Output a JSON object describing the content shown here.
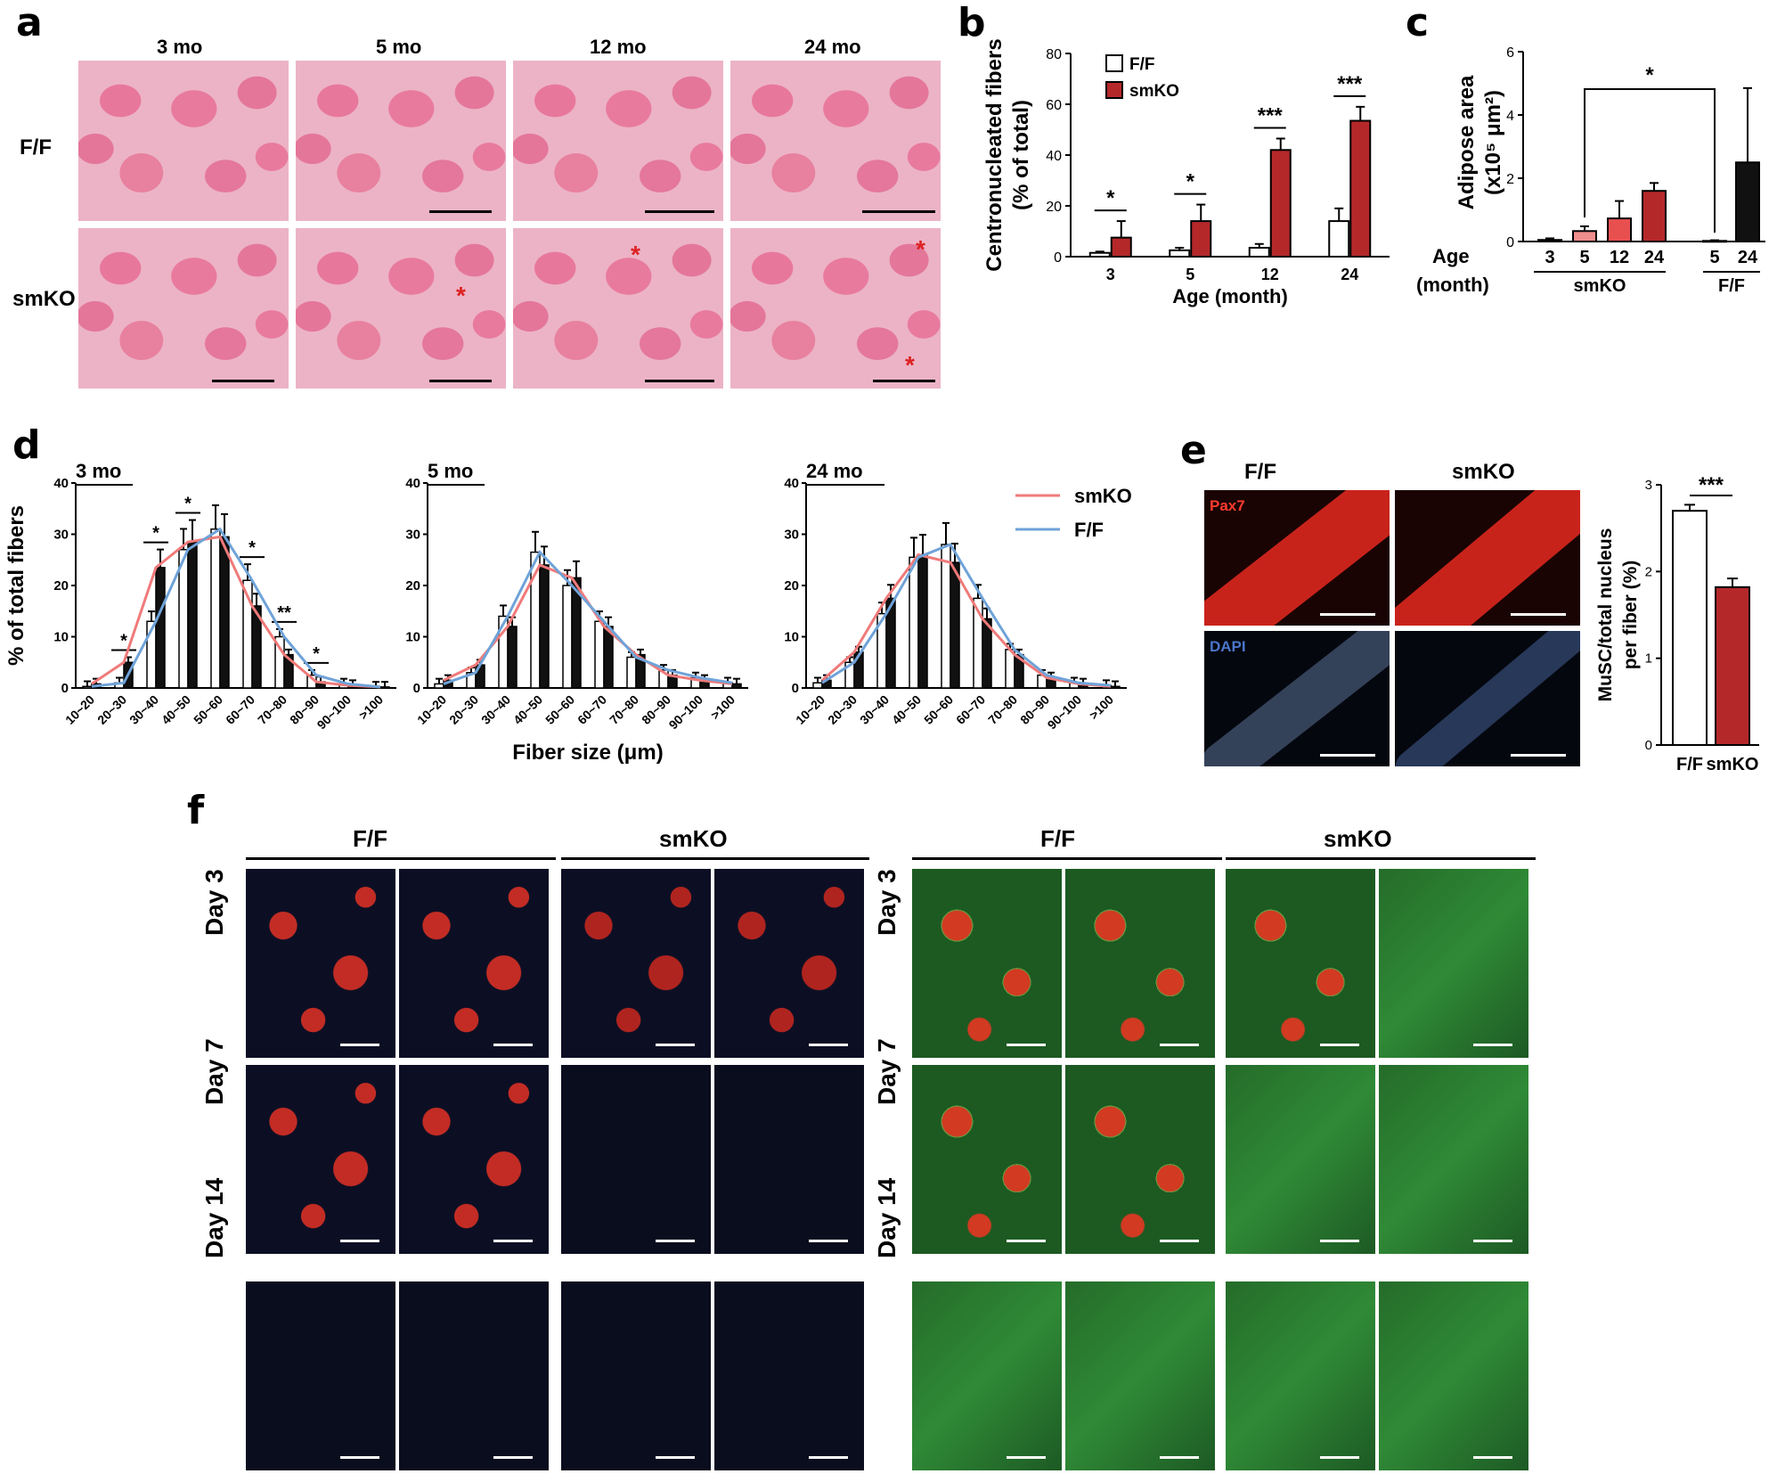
{
  "panels": {
    "a": "a",
    "b": "b",
    "c": "c",
    "d": "d",
    "e": "e",
    "f": "f"
  },
  "panel_a": {
    "ages": [
      "3 mo",
      "5 mo",
      "12 mo",
      "24 mo"
    ],
    "rows": [
      "F/F",
      "smKO"
    ],
    "asterisk": "*"
  },
  "panel_e": {
    "cols": [
      "F/F",
      "smKO"
    ],
    "stains": [
      "Pax7",
      "DAPI"
    ]
  },
  "panel_f": {
    "groups": [
      "F/F",
      "smKO",
      "F/F",
      "smKO"
    ],
    "days": [
      "Day 3",
      "Day 7",
      "Day 14"
    ]
  },
  "chart_data": [
    {
      "id": "b",
      "type": "bar",
      "ylabel": "Centronucleated fibers\n(% of total)",
      "xlabel": "Age (month)",
      "categories": [
        "3",
        "5",
        "12",
        "24"
      ],
      "ylim": [
        0,
        80
      ],
      "yticks": [
        "0",
        "20",
        "40",
        "60",
        "80"
      ],
      "series": [
        {
          "name": "F/F",
          "values": [
            1.5,
            2.5,
            3.5,
            14
          ],
          "errors": [
            0.5,
            1.0,
            1.5,
            5
          ],
          "color": "#ffffff"
        },
        {
          "name": "smKO",
          "values": [
            7.5,
            14,
            42,
            53.5
          ],
          "errors": [
            6.5,
            6.5,
            4.5,
            5.5
          ],
          "color": "#b5282a"
        }
      ],
      "significance": [
        "*",
        "*",
        "***",
        "***"
      ],
      "legend": "top-left"
    },
    {
      "id": "c",
      "type": "bar",
      "ylabel": "Adipose area\n(x10⁵ μm²)",
      "xaxis_title": "Age",
      "xaxis_title2": "(month)",
      "categories": [
        "3",
        "5",
        "12",
        "24",
        "5",
        "24"
      ],
      "groups": [
        "smKO",
        "F/F"
      ],
      "ylim": [
        0,
        6
      ],
      "yticks": [
        "0",
        "2",
        "4",
        "6"
      ],
      "values": [
        0.05,
        0.33,
        0.73,
        1.6,
        0.02,
        2.5
      ],
      "errors": [
        0.05,
        0.15,
        0.55,
        0.25,
        0.02,
        2.35
      ],
      "colors": [
        "#f7c6c6",
        "#f08e8e",
        "#e8504f",
        "#b5282a",
        "#ffffff",
        "#111111"
      ],
      "significance": "*"
    },
    {
      "id": "d1",
      "type": "bar",
      "subtitle": "3 mo",
      "ylabel": "% of total fibers",
      "categories": [
        "10~20",
        "20~30",
        "30~40",
        "40~50",
        "50~60",
        "60~70",
        "70~80",
        "80~90",
        "90~100",
        ">100"
      ],
      "ylim": [
        0,
        40
      ],
      "yticks": [
        "0",
        "10",
        "20",
        "30",
        "40"
      ],
      "series": [
        {
          "name": "F/F",
          "values": [
            0.3,
            1.0,
            13,
            27,
            31,
            21,
            10,
            2.5,
            0.8,
            0.2
          ],
          "color": "#ffffff"
        },
        {
          "name": "smKO",
          "values": [
            0.8,
            5,
            23.5,
            28.5,
            29.5,
            16,
            6.5,
            1.2,
            0.5,
            0.2
          ],
          "color": "#111111"
        }
      ],
      "fit_lines": [
        "smKO",
        "F/F"
      ],
      "significance": [
        "",
        "*",
        "*",
        "*",
        "",
        "*",
        "**",
        "*",
        "",
        ""
      ]
    },
    {
      "id": "d2",
      "type": "bar",
      "subtitle": "5 mo",
      "xlabel": "Fiber size (μm)",
      "categories": [
        "10~20",
        "20~30",
        "30~40",
        "40~50",
        "50~60",
        "60~70",
        "70~80",
        "80~90",
        "90~100",
        ">100"
      ],
      "ylim": [
        0,
        40
      ],
      "yticks": [
        "0",
        "10",
        "20",
        "30",
        "40"
      ],
      "series": [
        {
          "name": "F/F",
          "values": [
            0.8,
            3,
            14,
            26.5,
            20,
            13,
            6,
            3.5,
            2.0,
            1.0
          ],
          "color": "#ffffff"
        },
        {
          "name": "smKO",
          "values": [
            1.5,
            4.5,
            12,
            24,
            21.5,
            12,
            6.5,
            2.5,
            1.5,
            0.8
          ],
          "color": "#111111"
        }
      ]
    },
    {
      "id": "d3",
      "type": "bar",
      "subtitle": "24 mo",
      "categories": [
        "10~20",
        "20~30",
        "30~40",
        "40~50",
        "50~60",
        "60~70",
        "70~80",
        "80~90",
        "90~100",
        ">100"
      ],
      "ylim": [
        0,
        40
      ],
      "yticks": [
        "0",
        "10",
        "20",
        "30",
        "40"
      ],
      "series": [
        {
          "name": "F/F",
          "values": [
            1.0,
            5,
            14.5,
            25.5,
            28,
            17.5,
            7.5,
            2.5,
            1.0,
            0.5
          ],
          "color": "#ffffff"
        },
        {
          "name": "smKO",
          "values": [
            1.5,
            7,
            17.5,
            26,
            24.5,
            13.5,
            6.5,
            2.0,
            0.8,
            0.3
          ],
          "color": "#111111"
        }
      ],
      "legend": [
        "smKO",
        "F/F"
      ],
      "legend_colors": [
        "#f07a7a",
        "#6fa3d8"
      ]
    },
    {
      "id": "e",
      "type": "bar",
      "ylabel": "MuSC/total nucleus\nper fiber (%)",
      "categories": [
        "F/F",
        "smKO"
      ],
      "ylim": [
        0,
        3
      ],
      "yticks": [
        "0",
        "1",
        "2",
        "3"
      ],
      "values": [
        2.7,
        1.82
      ],
      "errors": [
        0.07,
        0.1
      ],
      "colors": [
        "#ffffff",
        "#b5282a"
      ],
      "significance": "***"
    }
  ]
}
